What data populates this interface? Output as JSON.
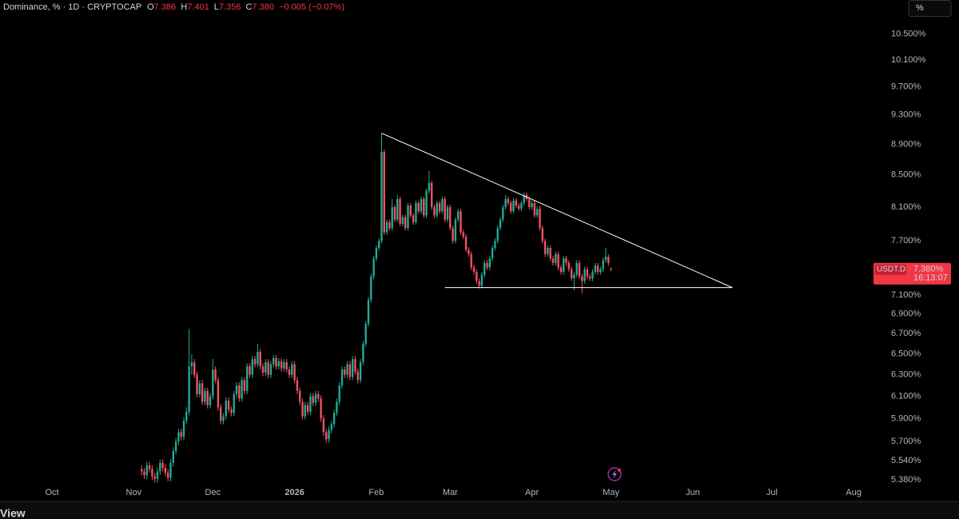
{
  "header": {
    "symbol": "Dominance, % · 1D · CRYPTOCAP",
    "ohlc": [
      {
        "key": "O",
        "text": "7.386"
      },
      {
        "key": "H",
        "text": "7.401"
      },
      {
        "key": "L",
        "text": "7.356"
      },
      {
        "key": "C",
        "text": "7.380"
      }
    ],
    "change": "−0.005 (−0.07%)"
  },
  "scale_button": "%",
  "price_badge": {
    "symbol": "USDT.D",
    "price": "7.380%",
    "countdown": "16:13:07",
    "value": 7.38
  },
  "footer": "View",
  "chart_data": {
    "type": "candlestick",
    "log_scale": true,
    "grid": false,
    "up_color": "#22ab94",
    "down_color": "#f7525f",
    "xlim": [
      -19.7,
      310
    ],
    "ylim": [
      5.35,
      11.05
    ],
    "xticks": [
      {
        "value": 0,
        "label": "Oct"
      },
      {
        "value": 31,
        "label": "Nov"
      },
      {
        "value": 61,
        "label": "Dec"
      },
      {
        "value": 92,
        "label": "2026"
      },
      {
        "value": 123,
        "label": "Feb"
      },
      {
        "value": 151,
        "label": "Mar"
      },
      {
        "value": 182,
        "label": "Apr"
      },
      {
        "value": 212,
        "label": "May"
      },
      {
        "value": 243,
        "label": "Jun"
      },
      {
        "value": 273,
        "label": "Jul"
      },
      {
        "value": 304,
        "label": "Aug"
      }
    ],
    "yticks": [
      {
        "value": 10.5,
        "label": "10.500%"
      },
      {
        "value": 10.1,
        "label": "10.100%"
      },
      {
        "value": 9.7,
        "label": "9.700%"
      },
      {
        "value": 9.3,
        "label": "9.300%"
      },
      {
        "value": 8.9,
        "label": "8.900%"
      },
      {
        "value": 8.5,
        "label": "8.500%"
      },
      {
        "value": 8.1,
        "label": "8.100%"
      },
      {
        "value": 7.7,
        "label": "7.700%"
      },
      {
        "value": 7.1,
        "label": "7.100%"
      },
      {
        "value": 6.9,
        "label": "6.900%"
      },
      {
        "value": 6.7,
        "label": "6.700%"
      },
      {
        "value": 6.5,
        "label": "6.500%"
      },
      {
        "value": 6.3,
        "label": "6.300%"
      },
      {
        "value": 6.1,
        "label": "6.100%"
      },
      {
        "value": 5.9,
        "label": "5.900%"
      },
      {
        "value": 5.7,
        "label": "5.700%"
      },
      {
        "value": 5.54,
        "label": "5.540%"
      },
      {
        "value": 5.38,
        "label": "5.380%"
      }
    ],
    "trendlines": [
      {
        "x": [
          125,
          258
        ],
        "y": [
          9.05,
          7.18
        ],
        "color": "#ffffff"
      },
      {
        "x": [
          149,
          258
        ],
        "y": [
          7.18,
          7.18
        ],
        "color": "#ffffff"
      }
    ],
    "x": [
      34,
      35,
      36,
      37,
      38,
      39,
      40,
      41,
      42,
      43,
      44,
      45,
      46,
      47,
      48,
      49,
      50,
      51,
      52,
      53,
      54,
      55,
      56,
      57,
      58,
      59,
      60,
      61,
      62,
      63,
      64,
      65,
      66,
      67,
      68,
      69,
      70,
      71,
      72,
      73,
      74,
      75,
      76,
      77,
      78,
      79,
      80,
      81,
      82,
      83,
      84,
      85,
      86,
      87,
      88,
      89,
      90,
      91,
      92,
      93,
      94,
      95,
      96,
      97,
      98,
      99,
      100,
      101,
      102,
      103,
      104,
      105,
      106,
      107,
      108,
      109,
      110,
      111,
      112,
      113,
      114,
      115,
      116,
      117,
      118,
      119,
      120,
      121,
      122,
      123,
      124,
      125,
      126,
      127,
      128,
      129,
      130,
      131,
      132,
      133,
      134,
      135,
      136,
      137,
      138,
      139,
      140,
      141,
      142,
      143,
      144,
      145,
      146,
      147,
      148,
      149,
      150,
      151,
      152,
      153,
      154,
      155,
      156,
      157,
      158,
      159,
      160,
      161,
      162,
      163,
      164,
      165,
      166,
      167,
      168,
      169,
      170,
      171,
      172,
      173,
      174,
      175,
      176,
      177,
      178,
      179,
      180,
      181,
      182,
      183,
      184,
      185,
      186,
      187,
      188,
      189,
      190,
      191,
      192,
      193,
      194,
      195,
      196,
      197,
      198,
      199,
      200,
      201,
      202,
      203,
      204,
      205,
      206,
      207,
      208,
      209,
      210,
      211,
      212
    ],
    "open": [
      5.47,
      5.45,
      5.42,
      5.5,
      5.47,
      5.41,
      5.39,
      5.45,
      5.52,
      5.48,
      5.44,
      5.4,
      5.52,
      5.62,
      5.7,
      5.78,
      5.74,
      5.88,
      5.96,
      6.38,
      6.42,
      6.3,
      6.12,
      6.22,
      6.05,
      6.15,
      6.02,
      6.1,
      6.35,
      6.25,
      6.0,
      5.88,
      5.92,
      6.06,
      5.98,
      5.95,
      6.12,
      6.2,
      6.08,
      6.25,
      6.15,
      6.38,
      6.3,
      6.45,
      6.4,
      6.52,
      6.38,
      6.32,
      6.42,
      6.3,
      6.4,
      6.46,
      6.38,
      6.43,
      6.36,
      6.42,
      6.35,
      6.3,
      6.4,
      6.25,
      6.15,
      6.05,
      5.92,
      6.02,
      5.96,
      6.1,
      6.04,
      6.12,
      6.08,
      5.9,
      5.78,
      5.72,
      5.8,
      5.85,
      5.95,
      6.05,
      6.2,
      6.35,
      6.3,
      6.4,
      6.28,
      6.45,
      6.33,
      6.25,
      6.42,
      6.6,
      6.8,
      7.05,
      7.3,
      7.5,
      7.62,
      7.7,
      8.8,
      7.8,
      7.92,
      7.85,
      8.1,
      7.95,
      8.2,
      7.9,
      7.98,
      7.85,
      8.12,
      8.0,
      7.92,
      8.15,
      8.05,
      8.2,
      8.0,
      8.3,
      8.4,
      8.1,
      8.0,
      8.15,
      8.05,
      8.2,
      7.95,
      8.1,
      7.85,
      7.7,
      7.95,
      8.05,
      7.8,
      7.75,
      7.6,
      7.55,
      7.4,
      7.35,
      7.25,
      7.2,
      7.32,
      7.45,
      7.4,
      7.5,
      7.62,
      7.7,
      7.85,
      7.95,
      8.1,
      8.2,
      8.15,
      8.05,
      8.18,
      8.12,
      8.08,
      8.15,
      8.25,
      8.2,
      8.1,
      8.15,
      8.0,
      8.08,
      7.85,
      7.7,
      7.55,
      7.62,
      7.5,
      7.45,
      7.55,
      7.4,
      7.35,
      7.5,
      7.45,
      7.38,
      7.28,
      7.32,
      7.45,
      7.3,
      7.25,
      7.38,
      7.3,
      7.28,
      7.35,
      7.42,
      7.35,
      7.38,
      7.48,
      7.52,
      7.386
    ],
    "high": [
      5.5,
      5.48,
      5.53,
      5.53,
      5.5,
      5.44,
      5.48,
      5.55,
      5.55,
      5.51,
      5.47,
      5.55,
      5.65,
      5.73,
      5.81,
      5.81,
      5.91,
      6.0,
      6.75,
      6.5,
      6.45,
      6.33,
      6.25,
      6.25,
      6.18,
      6.18,
      6.13,
      6.45,
      6.38,
      6.28,
      6.03,
      5.95,
      6.09,
      6.09,
      6.01,
      6.15,
      6.23,
      6.23,
      6.28,
      6.28,
      6.41,
      6.41,
      6.48,
      6.48,
      6.6,
      6.55,
      6.41,
      6.45,
      6.45,
      6.43,
      6.49,
      6.49,
      6.46,
      6.46,
      6.45,
      6.45,
      6.38,
      6.43,
      6.43,
      6.28,
      6.18,
      6.08,
      6.05,
      6.05,
      6.13,
      6.13,
      6.15,
      6.15,
      6.11,
      5.93,
      5.81,
      5.83,
      5.88,
      5.98,
      6.08,
      6.23,
      6.38,
      6.38,
      6.43,
      6.43,
      6.48,
      6.48,
      6.36,
      6.45,
      6.63,
      6.83,
      7.08,
      7.33,
      7.53,
      7.65,
      7.73,
      9.05,
      8.83,
      7.95,
      7.95,
      8.2,
      8.13,
      8.25,
      8.23,
      8.01,
      8.01,
      8.15,
      8.15,
      8.03,
      8.18,
      8.18,
      8.23,
      8.23,
      8.33,
      8.55,
      8.43,
      8.13,
      8.18,
      8.18,
      8.23,
      8.23,
      8.13,
      8.13,
      7.88,
      7.98,
      8.08,
      8.08,
      7.83,
      7.78,
      7.63,
      7.58,
      7.43,
      7.38,
      7.28,
      7.35,
      7.48,
      7.48,
      7.53,
      7.65,
      7.73,
      7.88,
      7.98,
      8.13,
      8.25,
      8.23,
      8.18,
      8.21,
      8.21,
      8.15,
      8.18,
      8.28,
      8.28,
      8.23,
      8.18,
      8.18,
      8.11,
      8.11,
      7.88,
      7.73,
      7.65,
      7.65,
      7.53,
      7.58,
      7.58,
      7.43,
      7.53,
      7.53,
      7.48,
      7.41,
      7.35,
      7.48,
      7.48,
      7.33,
      7.41,
      7.41,
      7.33,
      7.38,
      7.45,
      7.45,
      7.41,
      7.51,
      7.62,
      7.55,
      7.401
    ],
    "low": [
      5.42,
      5.39,
      5.39,
      5.44,
      5.38,
      5.36,
      5.36,
      5.42,
      5.45,
      5.41,
      5.37,
      5.37,
      5.49,
      5.59,
      5.67,
      5.71,
      5.71,
      5.85,
      5.93,
      6.3,
      6.27,
      6.09,
      6.09,
      6.02,
      6.02,
      5.99,
      5.99,
      6.07,
      6.22,
      5.97,
      5.85,
      5.85,
      5.89,
      5.95,
      5.92,
      5.92,
      6.09,
      6.05,
      6.05,
      6.12,
      6.12,
      6.27,
      6.27,
      6.37,
      6.37,
      6.35,
      6.29,
      6.29,
      6.27,
      6.27,
      6.37,
      6.35,
      6.35,
      6.33,
      6.33,
      6.32,
      6.27,
      6.27,
      6.22,
      6.12,
      6.02,
      5.89,
      5.89,
      5.93,
      5.93,
      6.01,
      6.01,
      6.05,
      5.87,
      5.75,
      5.69,
      5.69,
      5.77,
      5.82,
      5.92,
      6.02,
      6.17,
      6.27,
      6.27,
      6.25,
      6.25,
      6.3,
      6.22,
      6.22,
      6.39,
      6.57,
      6.77,
      7.02,
      7.27,
      7.47,
      7.59,
      7.67,
      7.77,
      7.77,
      7.82,
      7.82,
      7.92,
      7.92,
      7.87,
      7.87,
      7.82,
      7.82,
      7.97,
      7.89,
      7.89,
      8.02,
      8.02,
      7.97,
      7.97,
      8.27,
      8.07,
      7.97,
      7.97,
      8.02,
      8.02,
      7.92,
      7.92,
      7.82,
      7.67,
      7.67,
      7.92,
      7.77,
      7.72,
      7.57,
      7.52,
      7.37,
      7.32,
      7.22,
      7.17,
      7.17,
      7.29,
      7.37,
      7.37,
      7.47,
      7.59,
      7.67,
      7.82,
      7.92,
      8.07,
      8.12,
      8.02,
      8.02,
      8.09,
      8.05,
      8.05,
      8.12,
      8.17,
      8.07,
      8.07,
      7.97,
      7.97,
      7.82,
      7.67,
      7.52,
      7.52,
      7.47,
      7.42,
      7.42,
      7.37,
      7.32,
      7.32,
      7.42,
      7.35,
      7.25,
      7.15,
      7.29,
      7.27,
      7.12,
      7.22,
      7.27,
      7.25,
      7.25,
      7.32,
      7.32,
      7.32,
      7.35,
      7.45,
      7.42,
      7.356
    ],
    "close": [
      5.45,
      5.42,
      5.5,
      5.47,
      5.41,
      5.39,
      5.45,
      5.52,
      5.48,
      5.44,
      5.4,
      5.52,
      5.62,
      5.7,
      5.78,
      5.74,
      5.88,
      5.96,
      6.38,
      6.42,
      6.3,
      6.12,
      6.22,
      6.05,
      6.15,
      6.02,
      6.1,
      6.35,
      6.25,
      6.0,
      5.88,
      5.92,
      6.06,
      5.98,
      5.95,
      6.12,
      6.2,
      6.08,
      6.25,
      6.15,
      6.38,
      6.3,
      6.45,
      6.4,
      6.52,
      6.38,
      6.32,
      6.42,
      6.3,
      6.4,
      6.46,
      6.38,
      6.43,
      6.36,
      6.42,
      6.35,
      6.3,
      6.4,
      6.25,
      6.15,
      6.05,
      5.92,
      6.02,
      5.96,
      6.1,
      6.04,
      6.12,
      6.08,
      5.9,
      5.78,
      5.72,
      5.8,
      5.85,
      5.95,
      6.05,
      6.2,
      6.35,
      6.3,
      6.4,
      6.28,
      6.45,
      6.33,
      6.25,
      6.42,
      6.6,
      6.8,
      7.05,
      7.3,
      7.5,
      7.62,
      7.7,
      8.8,
      7.8,
      7.92,
      7.85,
      8.1,
      7.95,
      8.2,
      7.9,
      7.98,
      7.85,
      8.12,
      8.0,
      7.92,
      8.15,
      8.05,
      8.2,
      8.0,
      8.3,
      8.4,
      8.1,
      8.0,
      8.15,
      8.05,
      8.2,
      7.95,
      8.1,
      7.85,
      7.7,
      7.95,
      8.05,
      7.8,
      7.75,
      7.6,
      7.55,
      7.4,
      7.35,
      7.25,
      7.2,
      7.32,
      7.45,
      7.4,
      7.5,
      7.62,
      7.7,
      7.85,
      7.95,
      8.1,
      8.2,
      8.15,
      8.05,
      8.18,
      8.12,
      8.08,
      8.15,
      8.25,
      8.2,
      8.1,
      8.15,
      8.0,
      8.08,
      7.85,
      7.7,
      7.55,
      7.62,
      7.5,
      7.45,
      7.55,
      7.4,
      7.35,
      7.5,
      7.45,
      7.38,
      7.28,
      7.32,
      7.45,
      7.3,
      7.25,
      7.38,
      7.3,
      7.28,
      7.35,
      7.42,
      7.35,
      7.38,
      7.48,
      7.52,
      7.45,
      7.38
    ]
  }
}
